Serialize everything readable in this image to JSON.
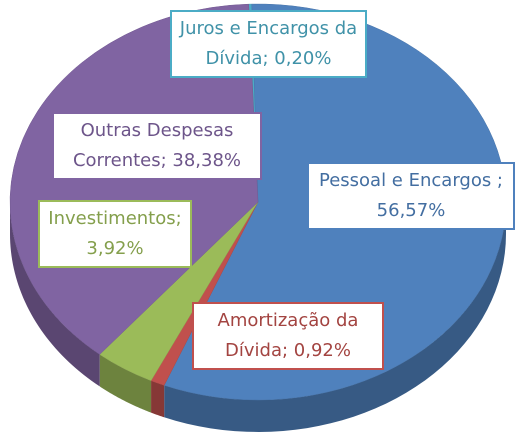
{
  "chart_data": {
    "type": "pie",
    "values": [
      0.2,
      56.57,
      0.92,
      3.92,
      38.38
    ],
    "value_labels": [
      "Juros e Encargos da Dívida; 0,20%",
      "Pessoal e Encargos ; 56,57%",
      "Amortização da Dívida; 0,92%",
      "Investimentos; 3,92%",
      "Outras Despesas Correntes; 38,38%"
    ],
    "colors": [
      "#4bacc6",
      "#4f81bd",
      "#c0504d",
      "#9bbb59",
      "#8064a2"
    ]
  }
}
